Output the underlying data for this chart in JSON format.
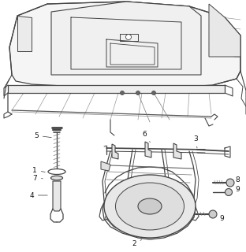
{
  "bg_color": "#ffffff",
  "line_color": "#444444",
  "line_width": 0.7,
  "label_fontsize": 6.5,
  "label_color": "#111111",
  "thin_line": "#888888",
  "mid_line": "#555555"
}
